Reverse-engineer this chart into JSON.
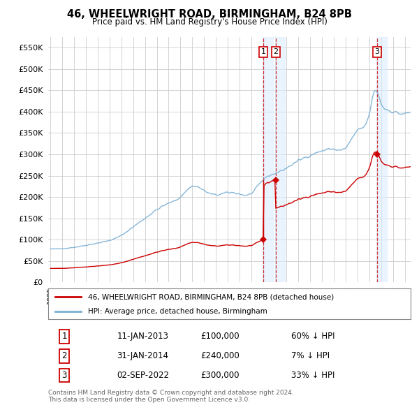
{
  "title": "46, WHEELWRIGHT ROAD, BIRMINGHAM, B24 8PB",
  "subtitle": "Price paid vs. HM Land Registry's House Price Index (HPI)",
  "property_label": "46, WHEELWRIGHT ROAD, BIRMINGHAM, B24 8PB (detached house)",
  "hpi_label": "HPI: Average price, detached house, Birmingham",
  "footer": "Contains HM Land Registry data © Crown copyright and database right 2024.\nThis data is licensed under the Open Government Licence v3.0.",
  "transactions": [
    {
      "num": 1,
      "date": "11-JAN-2013",
      "price": "£100,000",
      "pct": "60% ↓ HPI",
      "year": 2013.03,
      "price_val": 100000
    },
    {
      "num": 2,
      "date": "31-JAN-2014",
      "price": "£240,000",
      "pct": "7% ↓ HPI",
      "year": 2014.08,
      "price_val": 240000
    },
    {
      "num": 3,
      "date": "02-SEP-2022",
      "price": "£300,000",
      "pct": "33% ↓ HPI",
      "year": 2022.67,
      "price_val": 300000
    }
  ],
  "property_color": "#cc0000",
  "hpi_color": "#7aafd4",
  "ylim": [
    0,
    575000
  ],
  "yticks": [
    0,
    50000,
    100000,
    150000,
    200000,
    250000,
    300000,
    350000,
    400000,
    450000,
    500000,
    550000
  ],
  "xlim_start": 1994.8,
  "xlim_end": 2025.5,
  "bg_color": "#ffffff",
  "grid_color": "#cccccc",
  "shade_color": "#ddeeff"
}
